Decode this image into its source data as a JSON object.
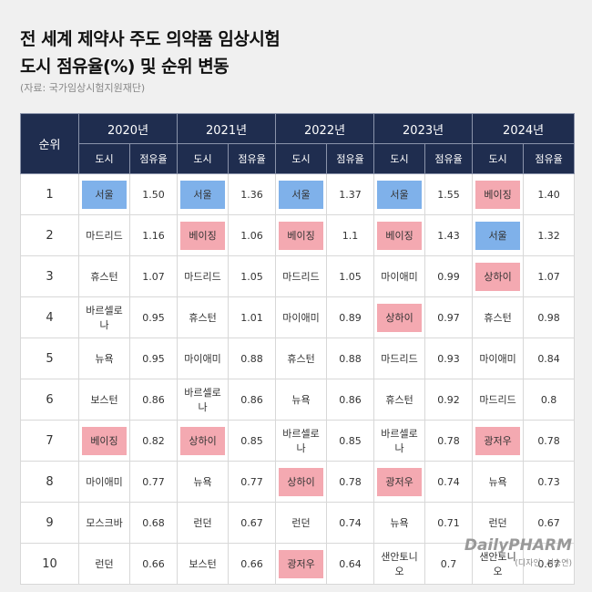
{
  "title_line1": "전 세계 제약사 주도 의약품 임상시험",
  "title_line2": "도시 점유율(%) 및 순위 변동",
  "source": "(자료: 국가임상시험지원재단)",
  "header": {
    "rank": "순위",
    "years": [
      "2020년",
      "2021년",
      "2022년",
      "2023년",
      "2024년"
    ],
    "city": "도시",
    "share": "점유율"
  },
  "colors": {
    "header_bg": "#1f2d4f",
    "seoul": "#7fb1ea",
    "beijing_china": "#f4a9b1"
  },
  "rows": [
    {
      "rank": "1",
      "cells": [
        {
          "city": "서울",
          "share": "1.50",
          "hl": "blue"
        },
        {
          "city": "서울",
          "share": "1.36",
          "hl": "blue"
        },
        {
          "city": "서울",
          "share": "1.37",
          "hl": "blue"
        },
        {
          "city": "서울",
          "share": "1.55",
          "hl": "blue"
        },
        {
          "city": "베이징",
          "share": "1.40",
          "hl": "red"
        }
      ]
    },
    {
      "rank": "2",
      "cells": [
        {
          "city": "마드리드",
          "share": "1.16",
          "hl": ""
        },
        {
          "city": "베이징",
          "share": "1.06",
          "hl": "red"
        },
        {
          "city": "베이징",
          "share": "1.1",
          "hl": "red"
        },
        {
          "city": "베이징",
          "share": "1.43",
          "hl": "red"
        },
        {
          "city": "서울",
          "share": "1.32",
          "hl": "blue"
        }
      ]
    },
    {
      "rank": "3",
      "cells": [
        {
          "city": "휴스턴",
          "share": "1.07",
          "hl": ""
        },
        {
          "city": "마드리드",
          "share": "1.05",
          "hl": ""
        },
        {
          "city": "마드리드",
          "share": "1.05",
          "hl": ""
        },
        {
          "city": "마이애미",
          "share": "0.99",
          "hl": ""
        },
        {
          "city": "상하이",
          "share": "1.07",
          "hl": "red"
        }
      ]
    },
    {
      "rank": "4",
      "cells": [
        {
          "city": "바르셀로나",
          "share": "0.95",
          "hl": ""
        },
        {
          "city": "휴스턴",
          "share": "1.01",
          "hl": ""
        },
        {
          "city": "마이애미",
          "share": "0.89",
          "hl": ""
        },
        {
          "city": "상하이",
          "share": "0.97",
          "hl": "red"
        },
        {
          "city": "휴스턴",
          "share": "0.98",
          "hl": ""
        }
      ]
    },
    {
      "rank": "5",
      "cells": [
        {
          "city": "뉴욕",
          "share": "0.95",
          "hl": ""
        },
        {
          "city": "마이애미",
          "share": "0.88",
          "hl": ""
        },
        {
          "city": "휴스턴",
          "share": "0.88",
          "hl": ""
        },
        {
          "city": "마드리드",
          "share": "0.93",
          "hl": ""
        },
        {
          "city": "마이애미",
          "share": "0.84",
          "hl": ""
        }
      ]
    },
    {
      "rank": "6",
      "cells": [
        {
          "city": "보스턴",
          "share": "0.86",
          "hl": ""
        },
        {
          "city": "바르셀로나",
          "share": "0.86",
          "hl": ""
        },
        {
          "city": "뉴욕",
          "share": "0.86",
          "hl": ""
        },
        {
          "city": "휴스턴",
          "share": "0.92",
          "hl": ""
        },
        {
          "city": "마드리드",
          "share": "0.8",
          "hl": ""
        }
      ]
    },
    {
      "rank": "7",
      "cells": [
        {
          "city": "베이징",
          "share": "0.82",
          "hl": "red"
        },
        {
          "city": "상하이",
          "share": "0.85",
          "hl": "red"
        },
        {
          "city": "바르셀로나",
          "share": "0.85",
          "hl": ""
        },
        {
          "city": "바르셀로나",
          "share": "0.78",
          "hl": ""
        },
        {
          "city": "광저우",
          "share": "0.78",
          "hl": "red"
        }
      ]
    },
    {
      "rank": "8",
      "cells": [
        {
          "city": "마이애미",
          "share": "0.77",
          "hl": ""
        },
        {
          "city": "뉴욕",
          "share": "0.77",
          "hl": ""
        },
        {
          "city": "상하이",
          "share": "0.78",
          "hl": "red"
        },
        {
          "city": "광저우",
          "share": "0.74",
          "hl": "red"
        },
        {
          "city": "뉴욕",
          "share": "0.73",
          "hl": ""
        }
      ]
    },
    {
      "rank": "9",
      "cells": [
        {
          "city": "모스크바",
          "share": "0.68",
          "hl": ""
        },
        {
          "city": "런던",
          "share": "0.67",
          "hl": ""
        },
        {
          "city": "런던",
          "share": "0.74",
          "hl": ""
        },
        {
          "city": "뉴욕",
          "share": "0.71",
          "hl": ""
        },
        {
          "city": "런던",
          "share": "0.67",
          "hl": ""
        }
      ]
    },
    {
      "rank": "10",
      "cells": [
        {
          "city": "런던",
          "share": "0.66",
          "hl": ""
        },
        {
          "city": "보스턴",
          "share": "0.66",
          "hl": ""
        },
        {
          "city": "광저우",
          "share": "0.64",
          "hl": "red"
        },
        {
          "city": "샌안토니오",
          "share": "0.7",
          "hl": ""
        },
        {
          "city": "샌안토니오",
          "share": "0.67",
          "hl": ""
        }
      ]
    }
  ],
  "logo": {
    "brand": "DailyPHARM",
    "credit": "(디자인: 서승연)"
  }
}
